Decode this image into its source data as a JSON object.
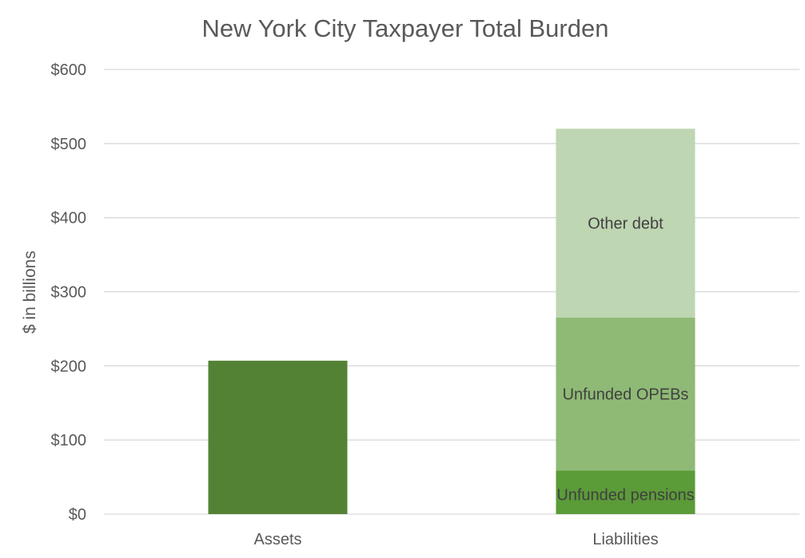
{
  "chart_data": {
    "type": "bar",
    "stacked": true,
    "title": "New York City Taxpayer Total Burden",
    "ylabel": "$ in billions",
    "xlabel": "",
    "ylim": [
      0,
      600
    ],
    "yticks": [
      0,
      100,
      200,
      300,
      400,
      500,
      600
    ],
    "ytick_labels": [
      "$0",
      "$100",
      "$200",
      "$300",
      "$400",
      "$500",
      "$600"
    ],
    "categories": [
      "Assets",
      "Liabilities"
    ],
    "grid": true,
    "legend": "none",
    "bars": [
      {
        "category": "Assets",
        "segments": [
          {
            "label": "",
            "value": 207,
            "color": "#548235"
          }
        ]
      },
      {
        "category": "Liabilities",
        "segments": [
          {
            "label": "Unfunded pensions",
            "value": 59,
            "color": "#5b9b38"
          },
          {
            "label": "Unfunded OPEBs",
            "value": 206,
            "color": "#8fba76"
          },
          {
            "label": "Other debt",
            "value": 255,
            "color": "#bed6b2"
          }
        ]
      }
    ],
    "colors": {
      "title": "#595959",
      "axis_text": "#595959",
      "segment_label": "#404040",
      "gridline": "#d9d9d9"
    }
  }
}
